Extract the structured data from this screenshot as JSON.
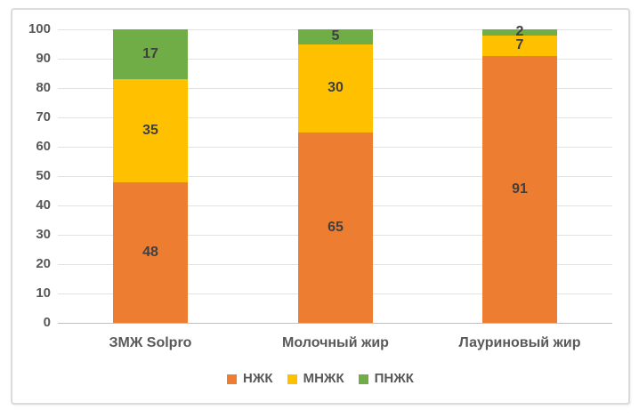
{
  "chart_data": {
    "type": "bar",
    "stacked": true,
    "title": "",
    "xlabel": "",
    "ylabel": "",
    "categories": [
      "ЗМЖ Solpro",
      "Молочный жир",
      "Лауриновый жир"
    ],
    "series": [
      {
        "name": "НЖК",
        "color": "#ED7D31",
        "values": [
          48,
          65,
          91
        ]
      },
      {
        "name": "МНЖК",
        "color": "#FFC000",
        "values": [
          35,
          30,
          7
        ]
      },
      {
        "name": "ПНЖК",
        "color": "#70AD47",
        "values": [
          17,
          5,
          2
        ]
      }
    ],
    "ylim": [
      0,
      100
    ],
    "yticks": [
      0,
      10,
      20,
      30,
      40,
      50,
      60,
      70,
      80,
      90,
      100
    ],
    "grid": true,
    "legend_position": "bottom"
  },
  "style": {
    "series_colors": {
      "НЖК": "#ED7D31",
      "МНЖК": "#FFC000",
      "ПНЖК": "#70AD47"
    },
    "gridline_color": "#E2E2E2",
    "axis_line_color": "#BFBFBF",
    "tick_label_color": "#595959",
    "category_label_color": "#595959",
    "legend_label_color": "#595959",
    "bar_value_label_color": "#404040",
    "frame_border_color": "#DBDBDB",
    "background_color": "#FFFFFF"
  }
}
